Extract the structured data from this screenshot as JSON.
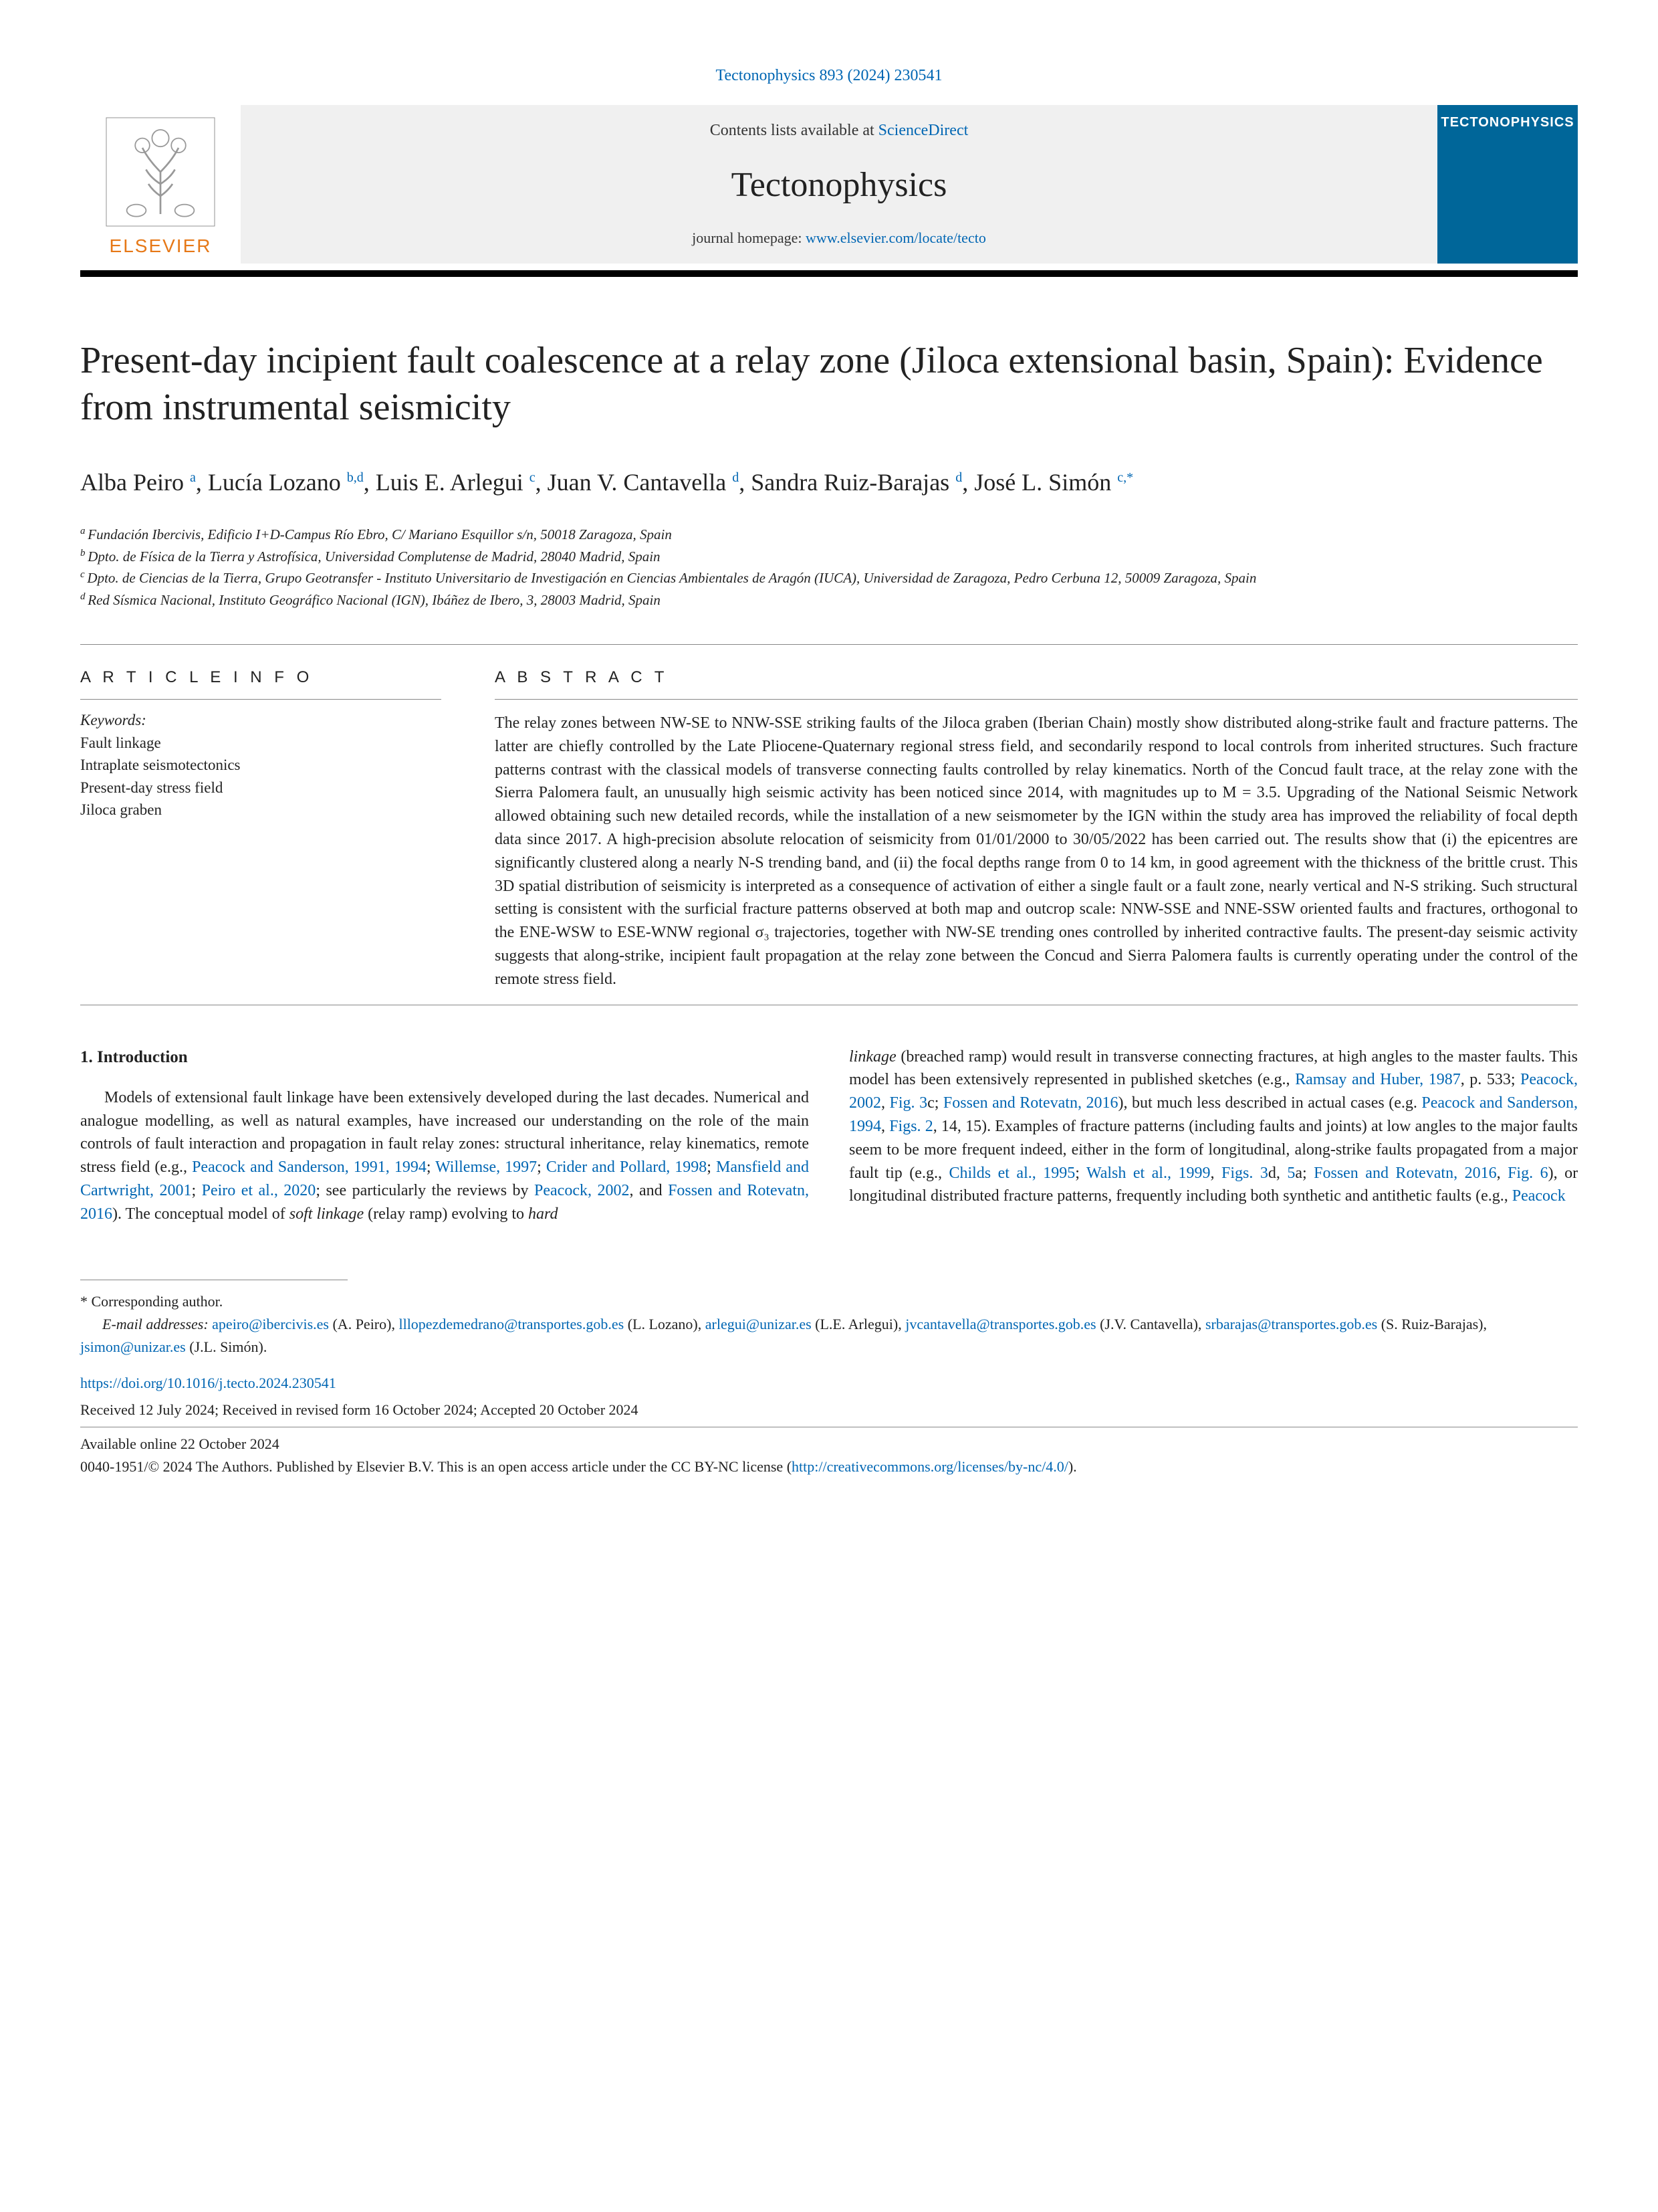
{
  "header": {
    "citation": "Tectonophysics 893 (2024) 230541",
    "contents_text": "Contents lists available at ",
    "contents_link": "ScienceDirect",
    "journal_name": "Tectonophysics",
    "homepage_text": "journal homepage: ",
    "homepage_link": "www.elsevier.com/locate/tecto",
    "elsevier": "ELSEVIER",
    "cover_title": "TECTONOPHYSICS"
  },
  "title": "Present-day incipient fault coalescence at a relay zone (Jiloca extensional basin, Spain): Evidence from instrumental seismicity",
  "authors": [
    {
      "name": "Alba Peiro",
      "sup": "a"
    },
    {
      "name": "Lucía Lozano",
      "sup": "b,d"
    },
    {
      "name": "Luis E. Arlegui",
      "sup": "c"
    },
    {
      "name": "Juan V. Cantavella",
      "sup": "d"
    },
    {
      "name": "Sandra Ruiz-Barajas",
      "sup": "d"
    },
    {
      "name": "José L. Simón",
      "sup": "c,*"
    }
  ],
  "affiliations": {
    "a": "Fundación Ibercivis, Edificio I+D-Campus Río Ebro, C/ Mariano Esquillor s/n, 50018 Zaragoza, Spain",
    "b": "Dpto. de Física de la Tierra y Astrofísica, Universidad Complutense de Madrid, 28040 Madrid, Spain",
    "c": "Dpto. de Ciencias de la Tierra, Grupo Geotransfer - Instituto Universitario de Investigación en Ciencias Ambientales de Aragón (IUCA), Universidad de Zaragoza, Pedro Cerbuna 12, 50009 Zaragoza, Spain",
    "d": "Red Sísmica Nacional, Instituto Geográfico Nacional (IGN), Ibáñez de Ibero, 3, 28003 Madrid, Spain"
  },
  "info": {
    "heading": "A R T I C L E  I N F O",
    "keywords_label": "Keywords:",
    "keywords": [
      "Fault linkage",
      "Intraplate seismotectonics",
      "Present-day stress field",
      "Jiloca graben"
    ]
  },
  "abstract": {
    "heading": "A B S T R A C T",
    "text": "The relay zones between NW-SE to NNW-SSE striking faults of the Jiloca graben (Iberian Chain) mostly show distributed along-strike fault and fracture patterns. The latter are chiefly controlled by the Late Pliocene-Quaternary regional stress field, and secondarily respond to local controls from inherited structures. Such fracture patterns contrast with the classical models of transverse connecting faults controlled by relay kinematics. North of the Concud fault trace, at the relay zone with the Sierra Palomera fault, an unusually high seismic activity has been noticed since 2014, with magnitudes up to M = 3.5. Upgrading of the National Seismic Network allowed obtaining such new detailed records, while the installation of a new seismometer by the IGN within the study area has improved the reliability of focal depth data since 2017. A high-precision absolute relocation of seismicity from 01/01/2000 to 30/05/2022 has been carried out. The results show that (i) the epicentres are significantly clustered along a nearly N-S trending band, and (ii) the focal depths range from 0 to 14 km, in good agreement with the thickness of the brittle crust. This 3D spatial distribution of seismicity is interpreted as a consequence of activation of either a single fault or a fault zone, nearly vertical and N-S striking. Such structural setting is consistent with the surficial fracture patterns observed at both map and outcrop scale: NNW-SSE and NNE-SSW oriented faults and fractures, orthogonal to the ENE-WSW to ESE-WNW regional σ₃ trajectories, together with NW-SE trending ones controlled by inherited contractive faults. The present-day seismic activity suggests that along-strike, incipient fault propagation at the relay zone between the Concud and Sierra Palomera faults is currently operating under the control of the remote stress field."
  },
  "body": {
    "section_heading": "1.  Introduction",
    "col1_pre": "Models of extensional fault linkage have been extensively developed during the last decades. Numerical and analogue modelling, as well as natural examples, have increased our understanding on the role of the main controls of fault interaction and propagation in fault relay zones: structural inheritance, relay kinematics, remote stress field (e.g., ",
    "col1_refs": [
      "Peacock and Sanderson, 1991, 1994",
      "Willemse, 1997",
      "Crider and Pollard, 1998",
      "Mansfield and Cartwright, 2001",
      "Peiro et al., 2020"
    ],
    "col1_mid": "; see particularly the reviews by ",
    "col1_refs2": [
      "Peacock, 2002",
      "Fossen and Rotevatn, 2016"
    ],
    "col1_post": "). The conceptual model of soft linkage (relay ramp) evolving to hard",
    "col2_pre": "linkage (breached ramp) would result in transverse connecting fractures, at high angles to the master faults. This model has been extensively represented in published sketches (e.g., ",
    "col2_ref1": "Ramsay and Huber, 1987",
    "col2_mid1": ", p. 533; ",
    "col2_ref2": "Peacock, 2002",
    "col2_ref2b": "Fig. 3",
    "col2_mid2": "c; ",
    "col2_ref3": "Fossen and Rotevatn, 2016",
    "col2_mid3": "), but much less described in actual cases (e.g. ",
    "col2_ref4": "Peacock and Sanderson, 1994",
    "col2_ref4b": "Figs. 2",
    "col2_mid4": ", 14, 15). Examples of fracture patterns (including faults and joints) at low angles to the major faults seem to be more frequent indeed, either in the form of longitudinal, along-strike faults propagated from a major fault tip (e.g., ",
    "col2_ref5": "Childs et al., 1995",
    "col2_ref6": "Walsh et al., 1999",
    "col2_ref6b": "Figs. 3",
    "col2_mid5": "d, ",
    "col2_ref6c": "5",
    "col2_mid6": "a; ",
    "col2_ref7": "Fossen and Rotevatn, 2016",
    "col2_ref7b": "Fig. 6",
    "col2_mid7": "), or longitudinal distributed fracture patterns, frequently including both synthetic and antithetic faults (e.g., ",
    "col2_ref8": "Peacock"
  },
  "footer": {
    "corr": "* Corresponding author.",
    "emails_label": "E-mail addresses: ",
    "emails": [
      {
        "email": "apeiro@ibercivis.es",
        "name": "(A. Peiro)"
      },
      {
        "email": "lllopezdemedrano@transportes.gob.es",
        "name": "(L. Lozano)"
      },
      {
        "email": "arlegui@unizar.es",
        "name": "(L.E. Arlegui)"
      },
      {
        "email": "jvcantavella@transportes.gob.es",
        "name": "(J.V. Cantavella)"
      },
      {
        "email": "srbarajas@transportes.gob.es",
        "name": "(S. Ruiz-Barajas)"
      },
      {
        "email": "jsimon@unizar.es",
        "name": "(J.L. Simón)"
      }
    ],
    "doi": "https://doi.org/10.1016/j.tecto.2024.230541",
    "received": "Received 12 July 2024; Received in revised form 16 October 2024; Accepted 20 October 2024",
    "available": "Available online 22 October 2024",
    "copyright_pre": "0040-1951/© 2024 The Authors.  Published by Elsevier B.V. This is an open access article under the CC BY-NC license (",
    "copyright_link": "http://creativecommons.org/licenses/by-nc/4.0/",
    "copyright_post": ")."
  }
}
